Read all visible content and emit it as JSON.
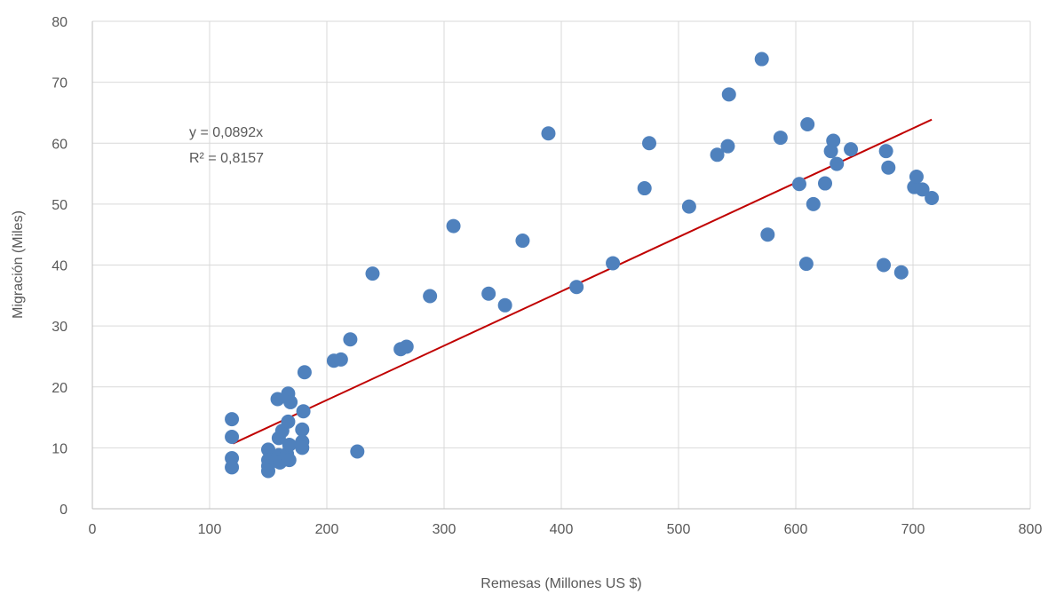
{
  "chart_data": {
    "type": "scatter",
    "title": "",
    "xlabel": "Remesas (Millones US $)",
    "ylabel": "Migración (Miles)",
    "xlim": [
      0,
      800
    ],
    "ylim": [
      0,
      80
    ],
    "x_ticks": [
      0,
      100,
      200,
      300,
      400,
      500,
      600,
      700,
      800
    ],
    "y_ticks": [
      0,
      10,
      20,
      30,
      40,
      50,
      60,
      70,
      80
    ],
    "grid": true,
    "legend": "none",
    "colors": {
      "points": "#4f81bd",
      "trendline": "#c00000",
      "grid": "#d9d9d9",
      "text": "#595959"
    },
    "trendline": {
      "type": "linear",
      "slope": 0.0892,
      "x_start": 120,
      "x_end": 716,
      "equation": "y = 0,0892x",
      "r_squared": "R² = 0,8157"
    },
    "series": [
      {
        "points": [
          [
            119,
            14.7
          ],
          [
            119,
            11.8
          ],
          [
            119,
            8.3
          ],
          [
            119,
            6.8
          ],
          [
            150,
            9.7
          ],
          [
            150,
            8.0
          ],
          [
            150,
            7.0
          ],
          [
            150,
            6.2
          ],
          [
            158,
            18.0
          ],
          [
            159,
            11.6
          ],
          [
            159,
            8.8
          ],
          [
            160,
            7.6
          ],
          [
            162,
            12.8
          ],
          [
            166,
            9.0
          ],
          [
            167,
            18.9
          ],
          [
            167,
            14.3
          ],
          [
            168,
            10.5
          ],
          [
            168,
            8.0
          ],
          [
            169,
            17.5
          ],
          [
            179,
            13.0
          ],
          [
            179,
            11.0
          ],
          [
            179,
            10.0
          ],
          [
            180,
            16.0
          ],
          [
            181,
            22.4
          ],
          [
            206,
            24.3
          ],
          [
            212,
            24.5
          ],
          [
            220,
            27.8
          ],
          [
            226,
            9.4
          ],
          [
            239,
            38.6
          ],
          [
            263,
            26.2
          ],
          [
            268,
            26.6
          ],
          [
            288,
            34.9
          ],
          [
            308,
            46.4
          ],
          [
            338,
            35.3
          ],
          [
            352,
            33.4
          ],
          [
            367,
            44.0
          ],
          [
            389,
            61.6
          ],
          [
            413,
            36.4
          ],
          [
            444,
            40.3
          ],
          [
            471,
            52.6
          ],
          [
            475,
            60.0
          ],
          [
            509,
            49.6
          ],
          [
            533,
            58.1
          ],
          [
            542,
            59.5
          ],
          [
            543,
            68.0
          ],
          [
            571,
            73.8
          ],
          [
            576,
            45.0
          ],
          [
            587,
            60.9
          ],
          [
            603,
            53.3
          ],
          [
            609,
            40.2
          ],
          [
            610,
            63.1
          ],
          [
            615,
            50.0
          ],
          [
            625,
            53.4
          ],
          [
            630,
            58.7
          ],
          [
            632,
            60.4
          ],
          [
            635,
            56.6
          ],
          [
            647,
            59.0
          ],
          [
            675,
            40.0
          ],
          [
            677,
            58.7
          ],
          [
            679,
            56.0
          ],
          [
            690,
            38.8
          ],
          [
            701,
            52.8
          ],
          [
            703,
            54.5
          ],
          [
            708,
            52.4
          ],
          [
            716,
            51.0
          ]
        ]
      }
    ]
  }
}
